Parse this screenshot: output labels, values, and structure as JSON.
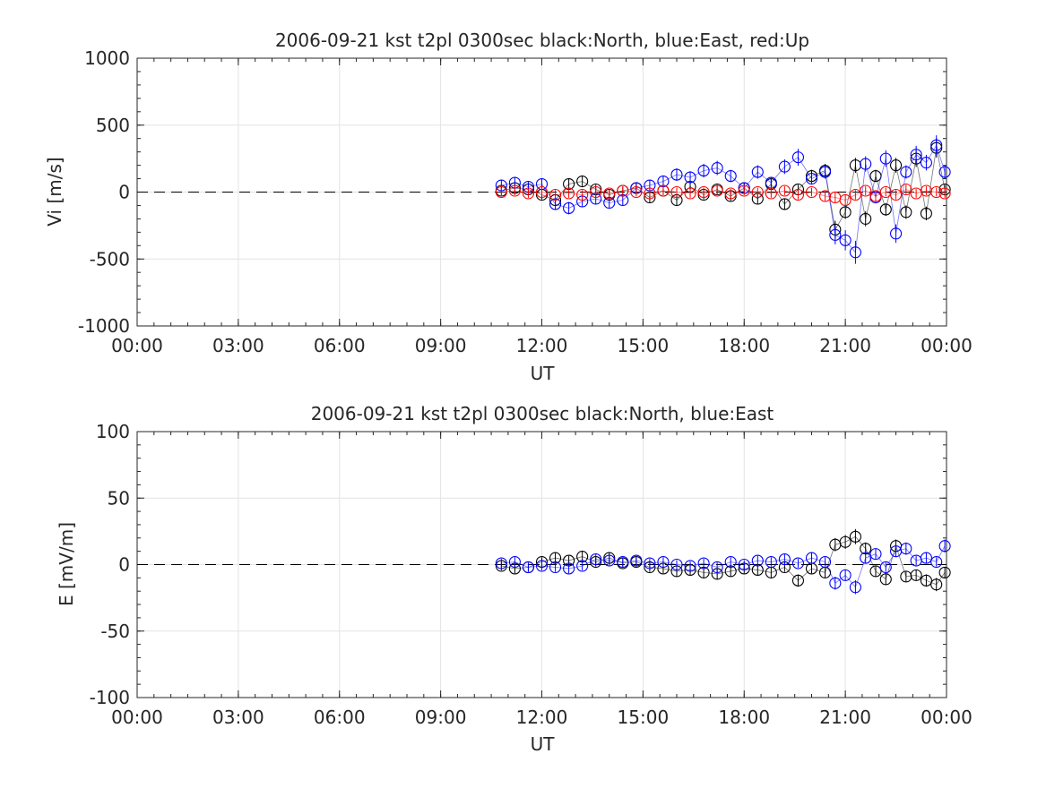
{
  "chart_data": [
    {
      "type": "scatter",
      "title": "2006-09-21 kst t2pl 0300sec black:North, blue:East, red:Up",
      "xlabel": "UT",
      "ylabel": "Vi [m/s]",
      "xlim": [
        "00:00",
        "24:00"
      ],
      "ylim": [
        -1000,
        1000
      ],
      "x_ticks": [
        "00:00",
        "03:00",
        "06:00",
        "09:00",
        "12:00",
        "15:00",
        "18:00",
        "21:00",
        "00:00"
      ],
      "y_ticks": [
        "1000",
        "500",
        "0",
        "-500",
        "-1000"
      ],
      "grid": true,
      "reference_line": {
        "y": 0,
        "style": "dashed",
        "color": "#000000"
      },
      "series": [
        {
          "color": "#000000",
          "error_bars": true,
          "x": [
            10.8,
            11.2,
            11.6,
            12.0,
            12.4,
            12.8,
            13.2,
            13.6,
            14.0,
            14.4,
            14.8,
            15.2,
            15.6,
            16.0,
            16.4,
            16.8,
            17.2,
            17.6,
            18.0,
            18.4,
            18.8,
            19.2,
            19.6,
            20.0,
            20.4,
            20.7,
            21.0,
            21.3,
            21.6,
            21.9,
            22.2,
            22.5,
            22.8,
            23.1,
            23.4,
            23.7,
            23.95
          ],
          "y": [
            10,
            30,
            20,
            -20,
            -60,
            60,
            80,
            20,
            -20,
            10,
            30,
            -40,
            10,
            -60,
            40,
            -20,
            20,
            -30,
            30,
            -50,
            60,
            -90,
            20,
            120,
            160,
            -280,
            -150,
            200,
            -200,
            120,
            -130,
            200,
            -150,
            250,
            -160,
            330,
            20
          ]
        },
        {
          "color": "#0000ff",
          "error_bars": true,
          "x": [
            10.8,
            11.2,
            11.6,
            12.0,
            12.4,
            12.8,
            13.2,
            13.6,
            14.0,
            14.4,
            14.8,
            15.2,
            15.6,
            16.0,
            16.4,
            16.8,
            17.2,
            17.6,
            18.0,
            18.4,
            18.8,
            19.2,
            19.6,
            20.0,
            20.4,
            20.7,
            21.0,
            21.3,
            21.6,
            21.9,
            22.2,
            22.5,
            22.8,
            23.1,
            23.4,
            23.7,
            23.95
          ],
          "y": [
            50,
            70,
            40,
            60,
            -90,
            -120,
            -70,
            -50,
            -80,
            -60,
            30,
            50,
            80,
            130,
            110,
            160,
            180,
            120,
            30,
            150,
            70,
            190,
            260,
            100,
            150,
            -320,
            -360,
            -450,
            210,
            -40,
            250,
            -310,
            150,
            280,
            220,
            350,
            150
          ]
        },
        {
          "color": "#ff0000",
          "error_bars": true,
          "x": [
            10.8,
            11.2,
            11.6,
            12.0,
            12.4,
            12.8,
            13.2,
            13.6,
            14.0,
            14.4,
            14.8,
            15.2,
            15.6,
            16.0,
            16.4,
            16.8,
            17.2,
            17.6,
            18.0,
            18.4,
            18.8,
            19.2,
            19.6,
            20.0,
            20.4,
            20.7,
            21.0,
            21.3,
            21.6,
            21.9,
            22.2,
            22.5,
            22.8,
            23.1,
            23.4,
            23.7,
            23.95
          ],
          "y": [
            0,
            10,
            -10,
            0,
            -20,
            -10,
            -20,
            0,
            -10,
            10,
            0,
            -10,
            10,
            0,
            -10,
            0,
            10,
            -10,
            10,
            0,
            -10,
            10,
            -20,
            0,
            -30,
            -40,
            -60,
            -20,
            10,
            -30,
            0,
            -20,
            20,
            -10,
            10,
            0,
            -10
          ]
        }
      ]
    },
    {
      "type": "scatter",
      "title": "2006-09-21 kst t2pl 0300sec black:North, blue:East",
      "xlabel": "UT",
      "ylabel": "E [mV/m]",
      "xlim": [
        "00:00",
        "24:00"
      ],
      "ylim": [
        -100,
        100
      ],
      "x_ticks": [
        "00:00",
        "03:00",
        "06:00",
        "09:00",
        "12:00",
        "15:00",
        "18:00",
        "21:00",
        "00:00"
      ],
      "y_ticks": [
        "100",
        "50",
        "0",
        "-50",
        "-100"
      ],
      "grid": true,
      "reference_line": {
        "y": 0,
        "style": "dashed",
        "color": "#000000"
      },
      "series": [
        {
          "color": "#000000",
          "error_bars": true,
          "x": [
            10.8,
            11.2,
            11.6,
            12.0,
            12.4,
            12.8,
            13.2,
            13.6,
            14.0,
            14.4,
            14.8,
            15.2,
            15.6,
            16.0,
            16.4,
            16.8,
            17.2,
            17.6,
            18.0,
            18.4,
            18.8,
            19.2,
            19.6,
            20.0,
            20.4,
            20.7,
            21.0,
            21.3,
            21.6,
            21.9,
            22.2,
            22.5,
            22.8,
            23.1,
            23.4,
            23.7,
            23.95
          ],
          "y": [
            -1,
            -3,
            -2,
            2,
            5,
            3,
            6,
            2,
            5,
            1,
            2,
            -2,
            -3,
            -5,
            -4,
            -6,
            -7,
            -5,
            -3,
            -4,
            -6,
            -2,
            -12,
            -3,
            -6,
            15,
            17,
            21,
            12,
            -5,
            -11,
            14,
            -9,
            -8,
            -12,
            -15,
            -6
          ]
        },
        {
          "color": "#0000ff",
          "error_bars": true,
          "x": [
            10.8,
            11.2,
            11.6,
            12.0,
            12.4,
            12.8,
            13.2,
            13.6,
            14.0,
            14.4,
            14.8,
            15.2,
            15.6,
            16.0,
            16.4,
            16.8,
            17.2,
            17.6,
            18.0,
            18.4,
            18.8,
            19.2,
            19.6,
            20.0,
            20.4,
            20.7,
            21.0,
            21.3,
            21.6,
            21.9,
            22.2,
            22.5,
            22.8,
            23.1,
            23.4,
            23.7,
            23.95
          ],
          "y": [
            1,
            2,
            -2,
            -1,
            -2,
            -3,
            -1,
            4,
            3,
            2,
            3,
            1,
            2,
            0,
            -1,
            1,
            -2,
            2,
            0,
            3,
            2,
            4,
            1,
            5,
            2,
            -14,
            -8,
            -17,
            5,
            8,
            -2,
            10,
            12,
            3,
            5,
            2,
            14
          ]
        }
      ]
    }
  ]
}
